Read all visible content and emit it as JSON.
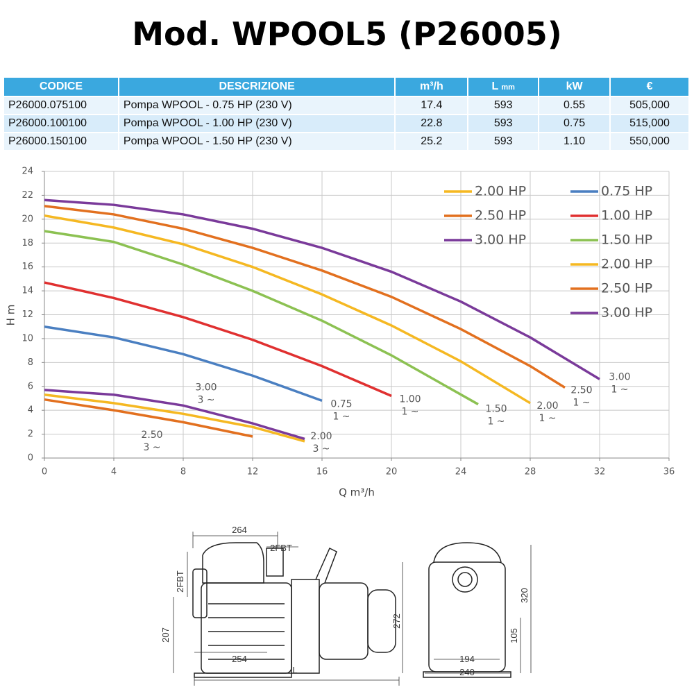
{
  "title": "Mod. WPOOL5 (P26005)",
  "table": {
    "header": [
      "CODICE",
      "DESCRIZIONE",
      "m³/h",
      {
        "label": "L",
        "unit": "mm"
      },
      "kW",
      "€"
    ],
    "rows": [
      [
        "P26000.075100",
        "Pompa WPOOL - 0.75 HP (230 V)",
        "17.4",
        "593",
        "0.55",
        "505,000"
      ],
      [
        "P26000.100100",
        "Pompa WPOOL - 1.00 HP (230 V)",
        "22.8",
        "593",
        "0.75",
        "515,000"
      ],
      [
        "P26000.150100",
        "Pompa WPOOL - 1.50 HP (230 V)",
        "25.2",
        "593",
        "1.10",
        "550,000"
      ]
    ]
  },
  "chart_data": {
    "type": "line",
    "x_label": "Q  m³/h",
    "y_label": "H  m",
    "xlim": [
      0,
      36
    ],
    "xticks": [
      0,
      4,
      8,
      12,
      16,
      20,
      24,
      28,
      32,
      36
    ],
    "ylim": [
      0,
      24
    ],
    "yticks": [
      0,
      2,
      4,
      6,
      8,
      10,
      12,
      14,
      16,
      18,
      20,
      22,
      24
    ],
    "grid": true,
    "series": [
      {
        "name": "0.75 HP",
        "color": "#4a7fc1",
        "end_label": [
          "0.75",
          "1 ~"
        ],
        "x": [
          0,
          4,
          8,
          12,
          16
        ],
        "values": [
          11,
          10.1,
          8.7,
          6.9,
          4.8
        ]
      },
      {
        "name": "1.00 HP",
        "color": "#e03030",
        "end_label": [
          "1.00",
          "1 ~"
        ],
        "x": [
          0,
          4,
          8,
          12,
          16,
          20
        ],
        "values": [
          14.7,
          13.4,
          11.8,
          9.9,
          7.7,
          5.2
        ]
      },
      {
        "name": "1.50 HP",
        "color": "#8cc152",
        "end_label": [
          "1.50",
          "1 ~"
        ],
        "x": [
          0,
          4,
          8,
          12,
          16,
          20,
          25
        ],
        "values": [
          19,
          18.1,
          16.2,
          14,
          11.5,
          8.6,
          4.5
        ]
      },
      {
        "name": "2.00 HP",
        "color": "#f5b822",
        "end_label": [
          "2.00",
          "1 ~"
        ],
        "x": [
          0,
          4,
          8,
          12,
          16,
          20,
          24,
          28
        ],
        "values": [
          20.3,
          19.3,
          17.9,
          16,
          13.7,
          11.1,
          8.1,
          4.6
        ]
      },
      {
        "name": "2.50 HP",
        "color": "#e2701f",
        "end_label": [
          "2.50",
          "1 ~"
        ],
        "x": [
          0,
          4,
          8,
          12,
          16,
          20,
          24,
          28,
          30
        ],
        "values": [
          21.1,
          20.4,
          19.2,
          17.6,
          15.7,
          13.5,
          10.8,
          7.7,
          5.9
        ]
      },
      {
        "name": "3.00 HP",
        "color": "#7a3a9a",
        "end_label": [
          "3.00",
          "1 ~"
        ],
        "x": [
          0,
          4,
          8,
          12,
          16,
          20,
          24,
          28,
          32
        ],
        "values": [
          21.6,
          21.2,
          20.4,
          19.2,
          17.6,
          15.6,
          13.1,
          10.1,
          6.6
        ]
      },
      {
        "name": "2.00 HP",
        "color": "#f5b822",
        "end_label": [
          "2.00",
          "3 ~"
        ],
        "x": [
          0,
          4,
          8,
          12,
          15
        ],
        "values": [
          5.3,
          4.6,
          3.7,
          2.6,
          1.4
        ]
      },
      {
        "name": "2.50 HP",
        "color": "#e2701f",
        "end_label": [
          "2.50",
          "3 ~"
        ],
        "x": [
          0,
          4,
          8,
          12
        ],
        "values": [
          4.9,
          4.0,
          3.0,
          1.8
        ]
      },
      {
        "name": "3.00 HP",
        "color": "#7a3a9a",
        "end_label": [
          "3.00",
          "3 ~"
        ],
        "x": [
          0,
          4,
          8,
          12,
          15
        ],
        "values": [
          5.7,
          5.3,
          4.4,
          2.9,
          1.6
        ]
      }
    ]
  },
  "drawing": {
    "dimensions": [
      "264",
      "2FBT",
      "2FBT",
      "207",
      "272",
      "254",
      "L",
      "320",
      "105",
      "194",
      "240"
    ]
  }
}
